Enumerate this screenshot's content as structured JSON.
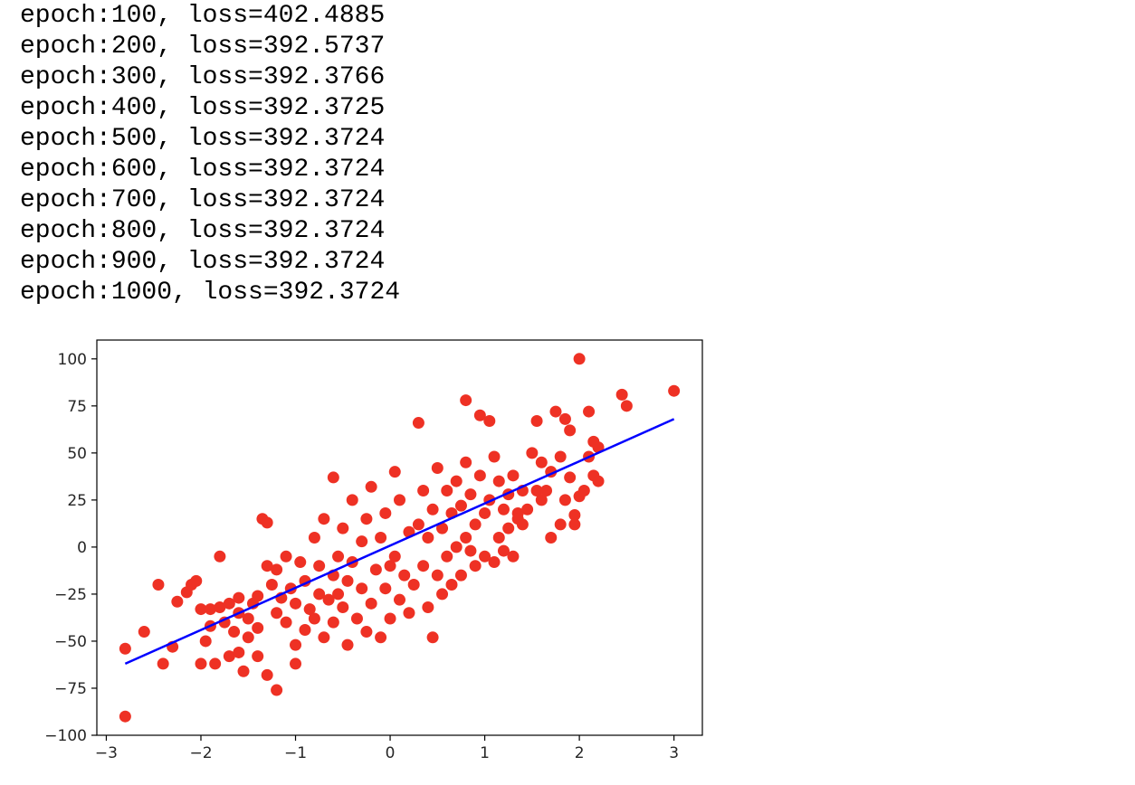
{
  "log_lines": [
    "epoch:100, loss=402.4885",
    "epoch:200, loss=392.5737",
    "epoch:300, loss=392.3766",
    "epoch:400, loss=392.3725",
    "epoch:500, loss=392.3724",
    "epoch:600, loss=392.3724",
    "epoch:700, loss=392.3724",
    "epoch:800, loss=392.3724",
    "epoch:900, loss=392.3724",
    "epoch:1000, loss=392.3724"
  ],
  "chart_data": {
    "type": "scatter",
    "title": "",
    "xlabel": "",
    "ylabel": "",
    "xlim": [
      -3.1,
      3.3
    ],
    "ylim": [
      -100,
      110
    ],
    "grid": false,
    "x_ticks": [
      -3,
      -2,
      -1,
      0,
      1,
      2,
      3
    ],
    "x_tick_labels": [
      "−3",
      "−2",
      "−1",
      "0",
      "1",
      "2",
      "3"
    ],
    "y_ticks": [
      -100,
      -75,
      -50,
      -25,
      0,
      25,
      50,
      75,
      100
    ],
    "y_tick_labels": [
      "−100",
      "−75",
      "−50",
      "−25",
      "0",
      "25",
      "50",
      "75",
      "100"
    ],
    "series": [
      {
        "type": "scatter",
        "color": "#ee3124",
        "points": [
          [
            -2.8,
            -90
          ],
          [
            -2.8,
            -54
          ],
          [
            -2.6,
            -45
          ],
          [
            -2.45,
            -20
          ],
          [
            -2.4,
            -62
          ],
          [
            -2.3,
            -53
          ],
          [
            -2.25,
            -29
          ],
          [
            -2.15,
            -24
          ],
          [
            -2.1,
            -20
          ],
          [
            -2.05,
            -18
          ],
          [
            -2.0,
            -33
          ],
          [
            -2.0,
            -62
          ],
          [
            -1.95,
            -50
          ],
          [
            -1.9,
            -42
          ],
          [
            -1.9,
            -33
          ],
          [
            -1.85,
            -62
          ],
          [
            -1.8,
            -32
          ],
          [
            -1.8,
            -5
          ],
          [
            -1.75,
            -40
          ],
          [
            -1.7,
            -58
          ],
          [
            -1.7,
            -30
          ],
          [
            -1.65,
            -45
          ],
          [
            -1.6,
            -35
          ],
          [
            -1.6,
            -27
          ],
          [
            -1.6,
            -56
          ],
          [
            -1.55,
            -66
          ],
          [
            -1.5,
            -48
          ],
          [
            -1.5,
            -38
          ],
          [
            -1.45,
            -30
          ],
          [
            -1.4,
            -43
          ],
          [
            -1.4,
            -58
          ],
          [
            -1.4,
            -26
          ],
          [
            -1.35,
            15
          ],
          [
            -1.3,
            13
          ],
          [
            -1.3,
            -10
          ],
          [
            -1.3,
            -68
          ],
          [
            -1.25,
            -20
          ],
          [
            -1.2,
            -76
          ],
          [
            -1.2,
            -35
          ],
          [
            -1.2,
            -12
          ],
          [
            -1.15,
            -27
          ],
          [
            -1.1,
            -5
          ],
          [
            -1.1,
            -40
          ],
          [
            -1.05,
            -22
          ],
          [
            -1.0,
            -30
          ],
          [
            -1.0,
            -52
          ],
          [
            -1.0,
            -62
          ],
          [
            -0.95,
            -8
          ],
          [
            -0.9,
            -44
          ],
          [
            -0.9,
            -18
          ],
          [
            -0.85,
            -33
          ],
          [
            -0.8,
            -38
          ],
          [
            -0.8,
            5
          ],
          [
            -0.75,
            -25
          ],
          [
            -0.75,
            -10
          ],
          [
            -0.7,
            -48
          ],
          [
            -0.7,
            15
          ],
          [
            -0.65,
            -28
          ],
          [
            -0.6,
            -15
          ],
          [
            -0.6,
            -40
          ],
          [
            -0.6,
            37
          ],
          [
            -0.55,
            -5
          ],
          [
            -0.55,
            -25
          ],
          [
            -0.5,
            10
          ],
          [
            -0.5,
            -32
          ],
          [
            -0.45,
            -52
          ],
          [
            -0.45,
            -18
          ],
          [
            -0.4,
            25
          ],
          [
            -0.4,
            -8
          ],
          [
            -0.35,
            -38
          ],
          [
            -0.3,
            3
          ],
          [
            -0.3,
            -22
          ],
          [
            -0.25,
            -45
          ],
          [
            -0.25,
            15
          ],
          [
            -0.2,
            -30
          ],
          [
            -0.2,
            32
          ],
          [
            -0.15,
            -12
          ],
          [
            -0.1,
            -48
          ],
          [
            -0.1,
            5
          ],
          [
            -0.05,
            -22
          ],
          [
            -0.05,
            18
          ],
          [
            0.0,
            -38
          ],
          [
            0.0,
            -10
          ],
          [
            0.05,
            40
          ],
          [
            0.05,
            -5
          ],
          [
            0.1,
            -28
          ],
          [
            0.1,
            25
          ],
          [
            0.15,
            -15
          ],
          [
            0.2,
            8
          ],
          [
            0.2,
            -35
          ],
          [
            0.25,
            -20
          ],
          [
            0.3,
            66
          ],
          [
            0.3,
            12
          ],
          [
            0.35,
            -10
          ],
          [
            0.35,
            30
          ],
          [
            0.4,
            -32
          ],
          [
            0.4,
            5
          ],
          [
            0.45,
            -48
          ],
          [
            0.45,
            20
          ],
          [
            0.5,
            -15
          ],
          [
            0.5,
            42
          ],
          [
            0.55,
            10
          ],
          [
            0.55,
            -25
          ],
          [
            0.6,
            30
          ],
          [
            0.6,
            -5
          ],
          [
            0.65,
            18
          ],
          [
            0.65,
            -20
          ],
          [
            0.7,
            35
          ],
          [
            0.7,
            0
          ],
          [
            0.75,
            22
          ],
          [
            0.75,
            -15
          ],
          [
            0.8,
            45
          ],
          [
            0.8,
            78
          ],
          [
            0.8,
            5
          ],
          [
            0.85,
            28
          ],
          [
            0.85,
            -2
          ],
          [
            0.9,
            12
          ],
          [
            0.9,
            -10
          ],
          [
            0.95,
            70
          ],
          [
            0.95,
            38
          ],
          [
            1.0,
            18
          ],
          [
            1.0,
            -5
          ],
          [
            1.05,
            67
          ],
          [
            1.05,
            25
          ],
          [
            1.1,
            -8
          ],
          [
            1.1,
            48
          ],
          [
            1.15,
            35
          ],
          [
            1.15,
            5
          ],
          [
            1.2,
            20
          ],
          [
            1.2,
            -2
          ],
          [
            1.25,
            28
          ],
          [
            1.25,
            10
          ],
          [
            1.3,
            38
          ],
          [
            1.3,
            -5
          ],
          [
            1.35,
            18
          ],
          [
            1.35,
            15
          ],
          [
            1.4,
            12
          ],
          [
            1.4,
            30
          ],
          [
            1.45,
            20
          ],
          [
            1.5,
            50
          ],
          [
            1.55,
            30
          ],
          [
            1.55,
            67
          ],
          [
            1.6,
            25
          ],
          [
            1.6,
            45
          ],
          [
            1.65,
            30
          ],
          [
            1.7,
            40
          ],
          [
            1.7,
            5
          ],
          [
            1.75,
            72
          ],
          [
            1.8,
            12
          ],
          [
            1.8,
            48
          ],
          [
            1.85,
            25
          ],
          [
            1.85,
            68
          ],
          [
            1.9,
            37
          ],
          [
            1.9,
            62
          ],
          [
            1.95,
            17
          ],
          [
            1.95,
            12
          ],
          [
            2.0,
            27
          ],
          [
            2.0,
            100
          ],
          [
            2.05,
            30
          ],
          [
            2.1,
            72
          ],
          [
            2.1,
            48
          ],
          [
            2.15,
            38
          ],
          [
            2.15,
            56
          ],
          [
            2.2,
            35
          ],
          [
            2.2,
            53
          ],
          [
            2.45,
            81
          ],
          [
            2.5,
            75
          ],
          [
            3.0,
            83
          ]
        ]
      },
      {
        "type": "line",
        "color": "#0000ff",
        "points": [
          [
            -2.8,
            -62
          ],
          [
            3.0,
            68
          ]
        ]
      }
    ]
  }
}
